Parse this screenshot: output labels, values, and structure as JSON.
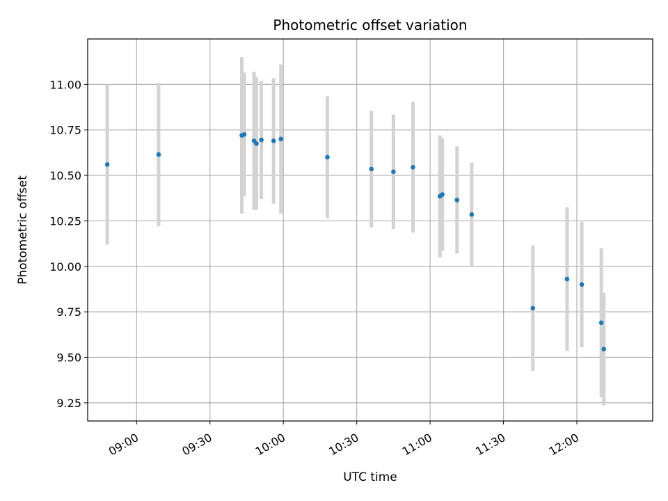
{
  "chart_data": {
    "type": "scatter",
    "title": "Photometric offset variation",
    "xlabel": "UTC time",
    "ylabel": "Photometric offset",
    "grid": true,
    "x_is_time": true,
    "xlim": [
      "08:40",
      "12:31"
    ],
    "ylim": [
      9.15,
      11.25
    ],
    "x_ticks": [
      "09:00",
      "09:30",
      "10:00",
      "10:30",
      "11:00",
      "11:30",
      "12:00"
    ],
    "y_ticks": [
      "9.25",
      "9.50",
      "9.75",
      "10.00",
      "10.25",
      "10.50",
      "10.75",
      "11.00"
    ],
    "marker_color": "#1f77b4",
    "errorbar_color": "#d3d3d3",
    "series": [
      {
        "points": [
          {
            "t": "08:48",
            "y": 10.56,
            "err": 0.44
          },
          {
            "t": "09:09",
            "y": 10.615,
            "err": 0.395
          },
          {
            "t": "09:43",
            "y": 10.72,
            "err": 0.43
          },
          {
            "t": "09:44",
            "y": 10.725,
            "err": 0.34
          },
          {
            "t": "09:48",
            "y": 10.69,
            "err": 0.38
          },
          {
            "t": "09:49",
            "y": 10.675,
            "err": 0.365
          },
          {
            "t": "09:51",
            "y": 10.695,
            "err": 0.325
          },
          {
            "t": "09:56",
            "y": 10.69,
            "err": 0.345
          },
          {
            "t": "09:59",
            "y": 10.7,
            "err": 0.41
          },
          {
            "t": "10:18",
            "y": 10.6,
            "err": 0.335
          },
          {
            "t": "10:36",
            "y": 10.535,
            "err": 0.32
          },
          {
            "t": "10:45",
            "y": 10.52,
            "err": 0.315
          },
          {
            "t": "10:53",
            "y": 10.545,
            "err": 0.36
          },
          {
            "t": "11:04",
            "y": 10.385,
            "err": 0.335
          },
          {
            "t": "11:05",
            "y": 10.395,
            "err": 0.31
          },
          {
            "t": "11:11",
            "y": 10.365,
            "err": 0.295
          },
          {
            "t": "11:17",
            "y": 10.285,
            "err": 0.285
          },
          {
            "t": "11:42",
            "y": 9.77,
            "err": 0.345
          },
          {
            "t": "11:56",
            "y": 9.93,
            "err": 0.395
          },
          {
            "t": "12:02",
            "y": 9.9,
            "err": 0.345
          },
          {
            "t": "12:10",
            "y": 9.69,
            "err": 0.41
          },
          {
            "t": "12:11",
            "y": 9.545,
            "err": 0.31
          }
        ]
      }
    ]
  }
}
